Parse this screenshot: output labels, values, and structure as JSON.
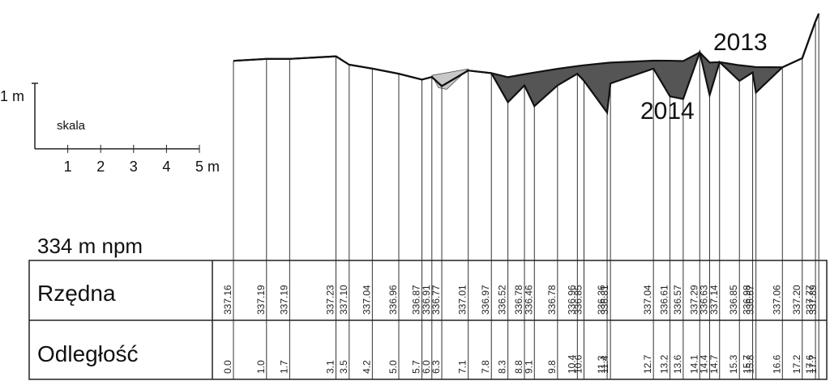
{
  "chart_data": {
    "type": "area",
    "datum_label": "334 m npm",
    "scale": {
      "label": "skala",
      "vertical_label": "1 m",
      "ticks": [
        "1",
        "2",
        "3",
        "4",
        "5 m"
      ]
    },
    "row_labels": {
      "elevation": "Rzędna",
      "distance": "Odległość"
    },
    "series": [
      {
        "name": "2013",
        "color": "#111111"
      },
      {
        "name": "2014",
        "color": "#111111"
      }
    ],
    "fill_colors": {
      "erosion": "#555555",
      "deposition": "#c8c8c8"
    },
    "stations": [
      {
        "dist": "0.0",
        "elev": "337.16"
      },
      {
        "dist": "1.0",
        "elev": "337.19"
      },
      {
        "dist": "1.7",
        "elev": "337.19"
      },
      {
        "dist": "3.1",
        "elev": "337.23"
      },
      {
        "dist": "3.5",
        "elev": "337.10"
      },
      {
        "dist": "4.2",
        "elev": "337.04"
      },
      {
        "dist": "5.0",
        "elev": "336.96"
      },
      {
        "dist": "5.7",
        "elev": "336.87"
      },
      {
        "dist": "6.0",
        "elev": "336.91"
      },
      {
        "dist": "6.3",
        "elev": "336.77"
      },
      {
        "dist": "7.1",
        "elev": "337.01"
      },
      {
        "dist": "7.8",
        "elev": "336.97"
      },
      {
        "dist": "8.3",
        "elev": "336.52"
      },
      {
        "dist": "8.8",
        "elev": "336.78"
      },
      {
        "dist": "9.1",
        "elev": "336.46"
      },
      {
        "dist": "9.8",
        "elev": "336.78"
      },
      {
        "dist": "10.4",
        "elev": "336.96"
      },
      {
        "dist": "10.6",
        "elev": "336.85"
      },
      {
        "dist": "11.3",
        "elev": "336.36"
      },
      {
        "dist": "11.4",
        "elev": "336.81"
      },
      {
        "dist": "12.7",
        "elev": "337.04"
      },
      {
        "dist": "13.2",
        "elev": "336.61"
      },
      {
        "dist": "13.6",
        "elev": "336.57"
      },
      {
        "dist": "14.1",
        "elev": "337.29"
      },
      {
        "dist": "14.4",
        "elev": "336.63"
      },
      {
        "dist": "14.7",
        "elev": "337.14"
      },
      {
        "dist": "15.3",
        "elev": "336.85"
      },
      {
        "dist": "15.7",
        "elev": "336.98"
      },
      {
        "dist": "15.8",
        "elev": "336.67"
      },
      {
        "dist": "16.6",
        "elev": "337.06"
      },
      {
        "dist": "17.2",
        "elev": "337.20"
      },
      {
        "dist": "17.6",
        "elev": "337.77"
      },
      {
        "dist": "17.7",
        "elev": "337.89"
      }
    ]
  }
}
